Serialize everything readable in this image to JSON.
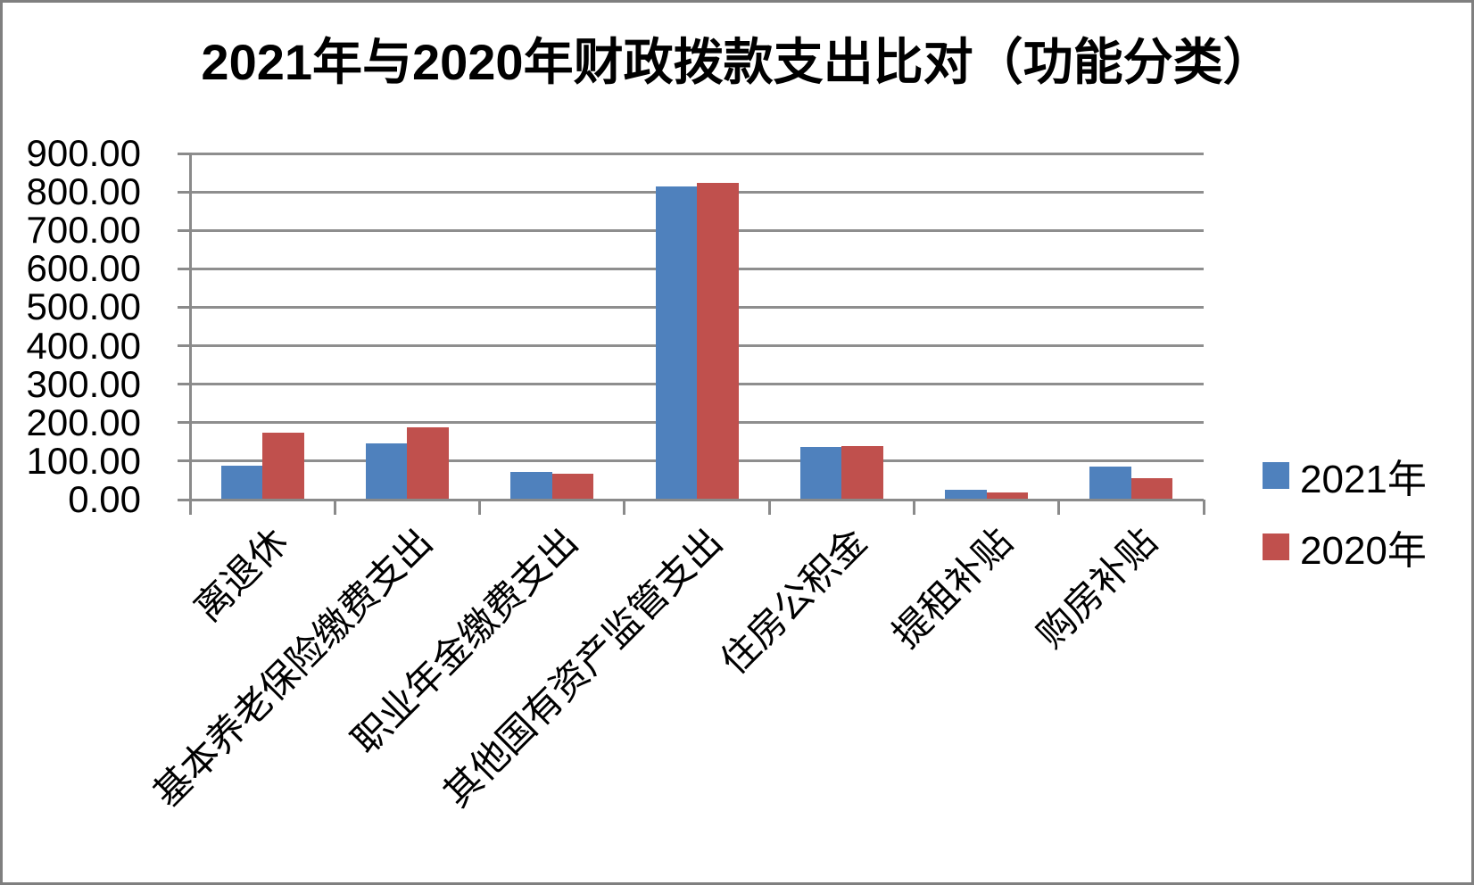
{
  "chart_data": {
    "type": "bar",
    "title": "2021年与2020年财政拨款支出比对（功能分类）",
    "categories": [
      "离退休",
      "基本养老保险缴费支出",
      "职业年金缴费支出",
      "其他国有资产监管支出",
      "住房公积金",
      "提租补贴",
      "购房补贴"
    ],
    "series": [
      {
        "name": "2021年",
        "color": "#4F81BD",
        "values": [
          87,
          146,
          71,
          814,
          137,
          25,
          85
        ]
      },
      {
        "name": "2020年",
        "color": "#C0504D",
        "values": [
          175,
          188,
          68,
          823,
          140,
          18,
          55
        ]
      }
    ],
    "ylim": [
      0,
      900
    ],
    "ytick_step": 100,
    "ytick_labels": [
      "900.00",
      "800.00",
      "700.00",
      "600.00",
      "500.00",
      "400.00",
      "300.00",
      "200.00",
      "100.00",
      "0.00"
    ],
    "xlabel": "",
    "ylabel": "",
    "grid": true,
    "legend_position": "right",
    "gridline_color": "#8E8E8E"
  }
}
